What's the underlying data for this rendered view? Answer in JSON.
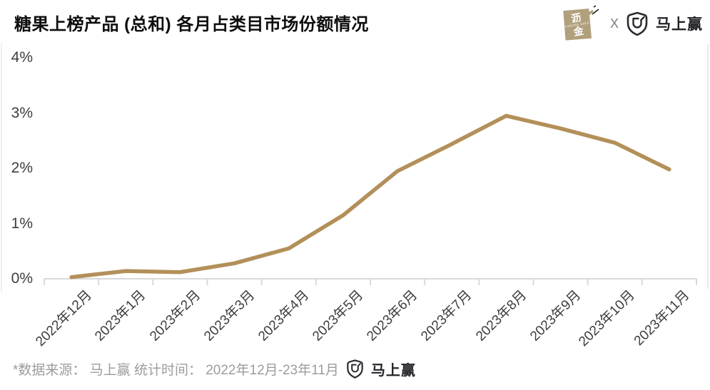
{
  "title": "糖果上榜产品 (总和) 各月占类目市场份额情况",
  "header": {
    "stamp": {
      "char1": "沥",
      "char2": "金",
      "subtext": "FINDING GOLD",
      "color": "#B1A07C"
    },
    "separator": "X",
    "brand": "马上赢"
  },
  "chart_data": {
    "type": "line",
    "title": "糖果上榜产品 (总和) 各月占类目市场份额情况",
    "categories": [
      "2022年12月",
      "2023年1月",
      "2023年2月",
      "2023年3月",
      "2023年4月",
      "2023年5月",
      "2023年6月",
      "2023年7月",
      "2023年8月",
      "2023年9月",
      "2023年10月",
      "2023年11月"
    ],
    "values": [
      0.03,
      0.14,
      0.12,
      0.28,
      0.55,
      1.15,
      1.95,
      2.44,
      2.95,
      2.72,
      2.46,
      1.98
    ],
    "unit": "%",
    "y_ticks": [
      "0%",
      "1%",
      "2%",
      "3%",
      "4%"
    ],
    "ylim": [
      0,
      4
    ],
    "xlabel": "",
    "ylabel": "",
    "grid": false,
    "legend": "none",
    "line_color": "#B3905A",
    "axis_color": "#D9D9D9"
  },
  "footer": {
    "note": "*数据来源： 马上赢 统计时间： 2022年12月-23年11月",
    "brand": "马上赢"
  }
}
